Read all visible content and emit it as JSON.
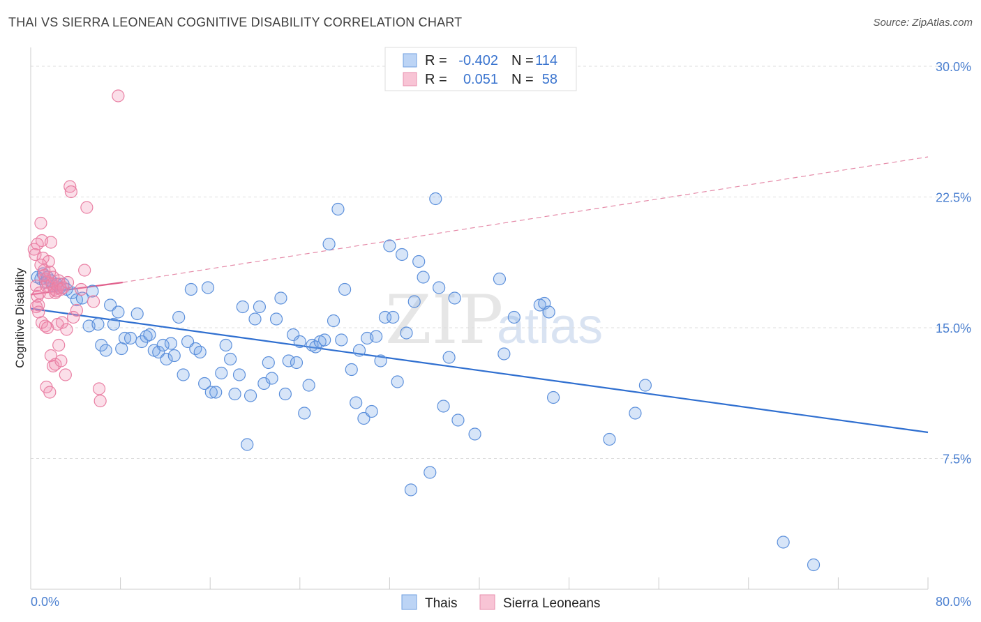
{
  "title": "THAI VS SIERRA LEONEAN COGNITIVE DISABILITY CORRELATION CHART",
  "source": "Source: ZipAtlas.com",
  "watermark": {
    "zip": "ZIP",
    "atlas": "atlas"
  },
  "colors": {
    "thais": "#4a86d8",
    "sierra": "#e8729a",
    "grid": "#dcdcdc"
  },
  "legend": {
    "r_label": "R =",
    "n_label": "N =",
    "rows": [
      {
        "series": "Thais",
        "r": "-0.402",
        "n": "114"
      },
      {
        "series": "Sierra Leoneans",
        "r": "0.051",
        "n": "58"
      }
    ]
  },
  "chart_data": {
    "type": "scatter",
    "title": "THAI VS SIERRA LEONEAN COGNITIVE DISABILITY CORRELATION CHART",
    "xlabel": "",
    "ylabel": "Cognitive Disability",
    "xlim": [
      0,
      80
    ],
    "ylim": [
      0,
      31
    ],
    "x_tick_labels": [
      "0.0%",
      "80.0%"
    ],
    "y_ticks": [
      7.5,
      15.0,
      22.5,
      30.0
    ],
    "y_tick_labels": [
      "7.5%",
      "15.0%",
      "22.5%",
      "30.0%"
    ],
    "grid": "horizontal dashed",
    "legend_position": "top-center",
    "series": [
      {
        "name": "Thais",
        "r": -0.402,
        "n": 114,
        "trend": {
          "x": [
            0,
            80
          ],
          "y": [
            16.1,
            9.0
          ]
        },
        "points": [
          [
            0.6,
            17.9
          ],
          [
            0.9,
            17.8
          ],
          [
            1.1,
            18.1
          ],
          [
            1.3,
            17.6
          ],
          [
            1.5,
            17.9
          ],
          [
            1.8,
            17.7
          ],
          [
            2.0,
            17.4
          ],
          [
            2.3,
            17.5
          ],
          [
            2.6,
            17.3
          ],
          [
            2.9,
            17.5
          ],
          [
            3.2,
            17.2
          ],
          [
            3.7,
            17.0
          ],
          [
            4.1,
            16.6
          ],
          [
            4.6,
            16.7
          ],
          [
            5.5,
            17.1
          ],
          [
            5.2,
            15.1
          ],
          [
            6.0,
            15.2
          ],
          [
            6.3,
            14.0
          ],
          [
            6.7,
            13.7
          ],
          [
            7.1,
            16.3
          ],
          [
            7.4,
            15.2
          ],
          [
            7.8,
            15.9
          ],
          [
            8.1,
            13.8
          ],
          [
            8.4,
            14.4
          ],
          [
            8.9,
            14.4
          ],
          [
            9.5,
            15.8
          ],
          [
            9.9,
            14.2
          ],
          [
            10.3,
            14.5
          ],
          [
            10.6,
            14.6
          ],
          [
            11.0,
            13.7
          ],
          [
            11.4,
            13.6
          ],
          [
            11.8,
            14.0
          ],
          [
            12.1,
            13.2
          ],
          [
            12.5,
            14.1
          ],
          [
            12.8,
            13.4
          ],
          [
            13.2,
            15.6
          ],
          [
            13.6,
            12.3
          ],
          [
            14.0,
            14.2
          ],
          [
            14.3,
            17.2
          ],
          [
            14.7,
            13.8
          ],
          [
            15.1,
            13.6
          ],
          [
            15.5,
            11.8
          ],
          [
            15.8,
            17.3
          ],
          [
            16.1,
            11.3
          ],
          [
            16.5,
            11.3
          ],
          [
            17.0,
            12.4
          ],
          [
            17.4,
            14.0
          ],
          [
            17.8,
            13.2
          ],
          [
            18.2,
            11.2
          ],
          [
            18.6,
            12.3
          ],
          [
            18.9,
            16.2
          ],
          [
            19.3,
            8.3
          ],
          [
            19.6,
            11.1
          ],
          [
            20.0,
            15.5
          ],
          [
            20.4,
            16.2
          ],
          [
            20.8,
            11.8
          ],
          [
            21.2,
            13.0
          ],
          [
            21.5,
            12.1
          ],
          [
            21.9,
            15.5
          ],
          [
            22.3,
            16.7
          ],
          [
            22.7,
            11.2
          ],
          [
            23.0,
            13.1
          ],
          [
            23.4,
            14.6
          ],
          [
            23.7,
            13.0
          ],
          [
            24.0,
            14.2
          ],
          [
            24.4,
            10.1
          ],
          [
            24.8,
            11.7
          ],
          [
            25.1,
            14.0
          ],
          [
            25.4,
            13.9
          ],
          [
            25.8,
            14.2
          ],
          [
            26.2,
            14.3
          ],
          [
            26.6,
            19.8
          ],
          [
            27.0,
            15.4
          ],
          [
            27.4,
            21.8
          ],
          [
            27.7,
            14.3
          ],
          [
            28.0,
            17.2
          ],
          [
            28.6,
            12.6
          ],
          [
            29.0,
            10.7
          ],
          [
            29.3,
            13.7
          ],
          [
            29.7,
            9.8
          ],
          [
            30.0,
            14.4
          ],
          [
            30.4,
            10.2
          ],
          [
            30.8,
            14.5
          ],
          [
            31.2,
            13.1
          ],
          [
            31.6,
            15.6
          ],
          [
            32.0,
            19.7
          ],
          [
            32.3,
            15.6
          ],
          [
            32.7,
            11.9
          ],
          [
            33.1,
            19.2
          ],
          [
            33.5,
            14.7
          ],
          [
            33.9,
            5.7
          ],
          [
            34.2,
            16.5
          ],
          [
            34.6,
            18.8
          ],
          [
            35.0,
            17.9
          ],
          [
            35.6,
            6.7
          ],
          [
            36.1,
            22.4
          ],
          [
            36.4,
            17.3
          ],
          [
            36.8,
            10.5
          ],
          [
            37.3,
            13.3
          ],
          [
            37.8,
            16.7
          ],
          [
            38.1,
            9.7
          ],
          [
            39.6,
            8.9
          ],
          [
            41.8,
            17.8
          ],
          [
            42.2,
            13.5
          ],
          [
            43.1,
            15.6
          ],
          [
            45.4,
            16.3
          ],
          [
            45.8,
            16.4
          ],
          [
            46.2,
            15.9
          ],
          [
            46.6,
            11.0
          ],
          [
            51.6,
            8.6
          ],
          [
            53.9,
            10.1
          ],
          [
            54.8,
            11.7
          ],
          [
            67.1,
            2.7
          ],
          [
            69.8,
            1.4
          ]
        ]
      },
      {
        "name": "Sierra Leoneans",
        "r": 0.051,
        "n": 58,
        "trend": {
          "x": [
            0,
            8.2
          ],
          "y": [
            16.9,
            17.6
          ],
          "extension": {
            "x": [
              8.2,
              80
            ],
            "y": [
              17.6,
              24.8
            ]
          }
        },
        "points": [
          [
            0.3,
            19.5
          ],
          [
            0.4,
            19.2
          ],
          [
            0.5,
            17.4
          ],
          [
            0.6,
            16.8
          ],
          [
            0.7,
            16.3
          ],
          [
            0.8,
            17.0
          ],
          [
            0.9,
            21.0
          ],
          [
            1.0,
            20.0
          ],
          [
            1.1,
            19.0
          ],
          [
            1.2,
            18.3
          ],
          [
            1.3,
            17.8
          ],
          [
            1.4,
            17.4
          ],
          [
            1.5,
            17.6
          ],
          [
            1.6,
            18.8
          ],
          [
            1.7,
            18.2
          ],
          [
            1.8,
            19.9
          ],
          [
            1.9,
            17.5
          ],
          [
            2.0,
            17.9
          ],
          [
            2.1,
            17.2
          ],
          [
            2.2,
            17.0
          ],
          [
            2.3,
            17.1
          ],
          [
            2.4,
            17.3
          ],
          [
            2.5,
            17.7
          ],
          [
            2.6,
            17.5
          ],
          [
            2.7,
            17.2
          ],
          [
            0.5,
            16.2
          ],
          [
            0.7,
            15.9
          ],
          [
            1.0,
            15.3
          ],
          [
            1.3,
            15.1
          ],
          [
            1.5,
            15.0
          ],
          [
            1.8,
            13.4
          ],
          [
            2.0,
            12.8
          ],
          [
            2.2,
            12.9
          ],
          [
            2.5,
            14.0
          ],
          [
            2.7,
            13.1
          ],
          [
            1.4,
            11.6
          ],
          [
            1.7,
            11.3
          ],
          [
            2.4,
            15.2
          ],
          [
            2.8,
            15.3
          ],
          [
            3.2,
            14.9
          ],
          [
            3.1,
            12.3
          ],
          [
            3.5,
            23.1
          ],
          [
            3.6,
            22.8
          ],
          [
            3.8,
            15.6
          ],
          [
            4.1,
            16.0
          ],
          [
            4.5,
            17.2
          ],
          [
            4.8,
            18.3
          ],
          [
            5.0,
            21.9
          ],
          [
            5.6,
            16.5
          ],
          [
            6.1,
            11.5
          ],
          [
            6.2,
            10.8
          ],
          [
            7.8,
            28.3
          ],
          [
            0.6,
            19.8
          ],
          [
            0.9,
            18.6
          ],
          [
            1.2,
            18.0
          ],
          [
            1.6,
            17.0
          ],
          [
            2.9,
            17.3
          ],
          [
            3.3,
            17.6
          ]
        ]
      }
    ]
  }
}
